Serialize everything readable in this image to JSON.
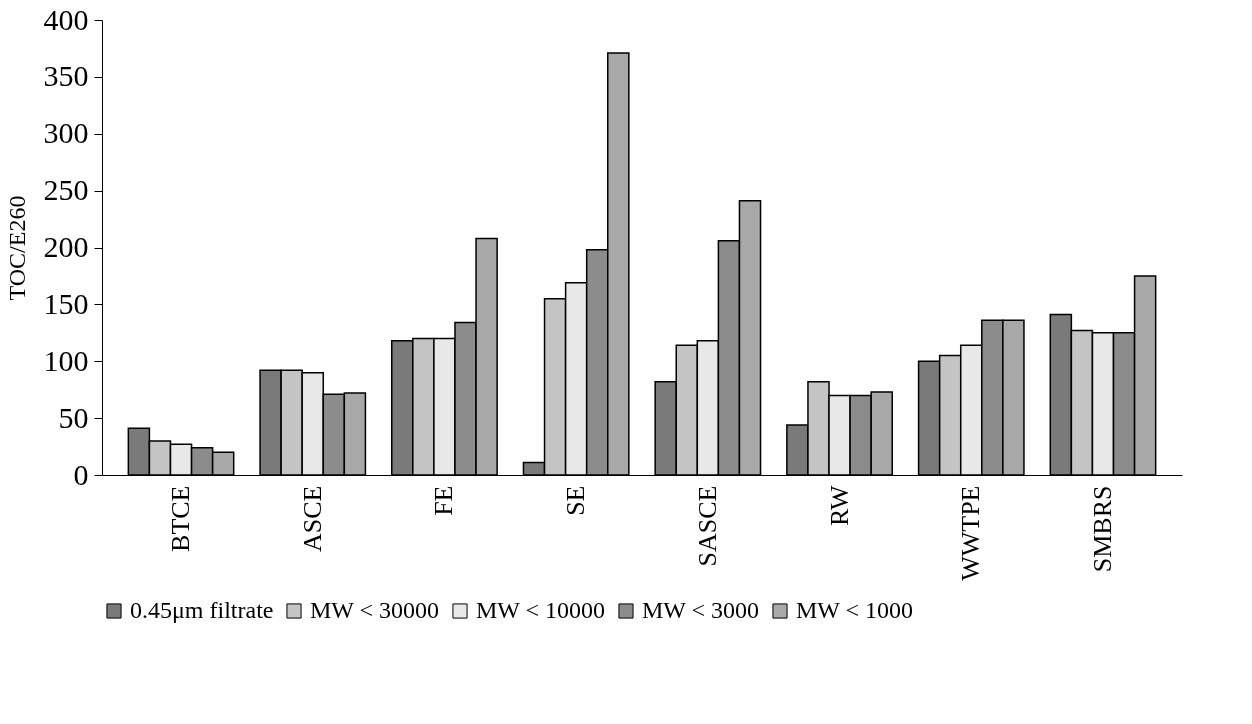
{
  "chart_data": {
    "type": "bar",
    "ylabel": "TOC/E260",
    "categories": [
      "BTCE",
      "ASCE",
      "FE",
      "SE",
      "SASCE",
      "RW",
      "WWTPE",
      "SMBRS"
    ],
    "series": [
      {
        "name": "0.45μm filtrate",
        "color": "#7a7a7a",
        "values": [
          41,
          92,
          118,
          11,
          82,
          44,
          100,
          141
        ]
      },
      {
        "name": "MW < 30000",
        "color": "#c4c4c4",
        "values": [
          30,
          92,
          120,
          155,
          114,
          82,
          105,
          127
        ]
      },
      {
        "name": "MW < 10000",
        "color": "#e8e8e8",
        "values": [
          27,
          90,
          120,
          169,
          118,
          70,
          114,
          125
        ]
      },
      {
        "name": "MW < 3000",
        "color": "#8c8c8c",
        "values": [
          24,
          71,
          134,
          198,
          206,
          70,
          136,
          125
        ]
      },
      {
        "name": "MW < 1000",
        "color": "#a8a8a8",
        "values": [
          20,
          72,
          208,
          371,
          241,
          73,
          136,
          175
        ]
      }
    ],
    "ylim": [
      0,
      400
    ],
    "yticks": [
      0,
      50,
      100,
      150,
      200,
      250,
      300,
      350,
      400
    ],
    "grid": false,
    "legend": "bottom"
  }
}
